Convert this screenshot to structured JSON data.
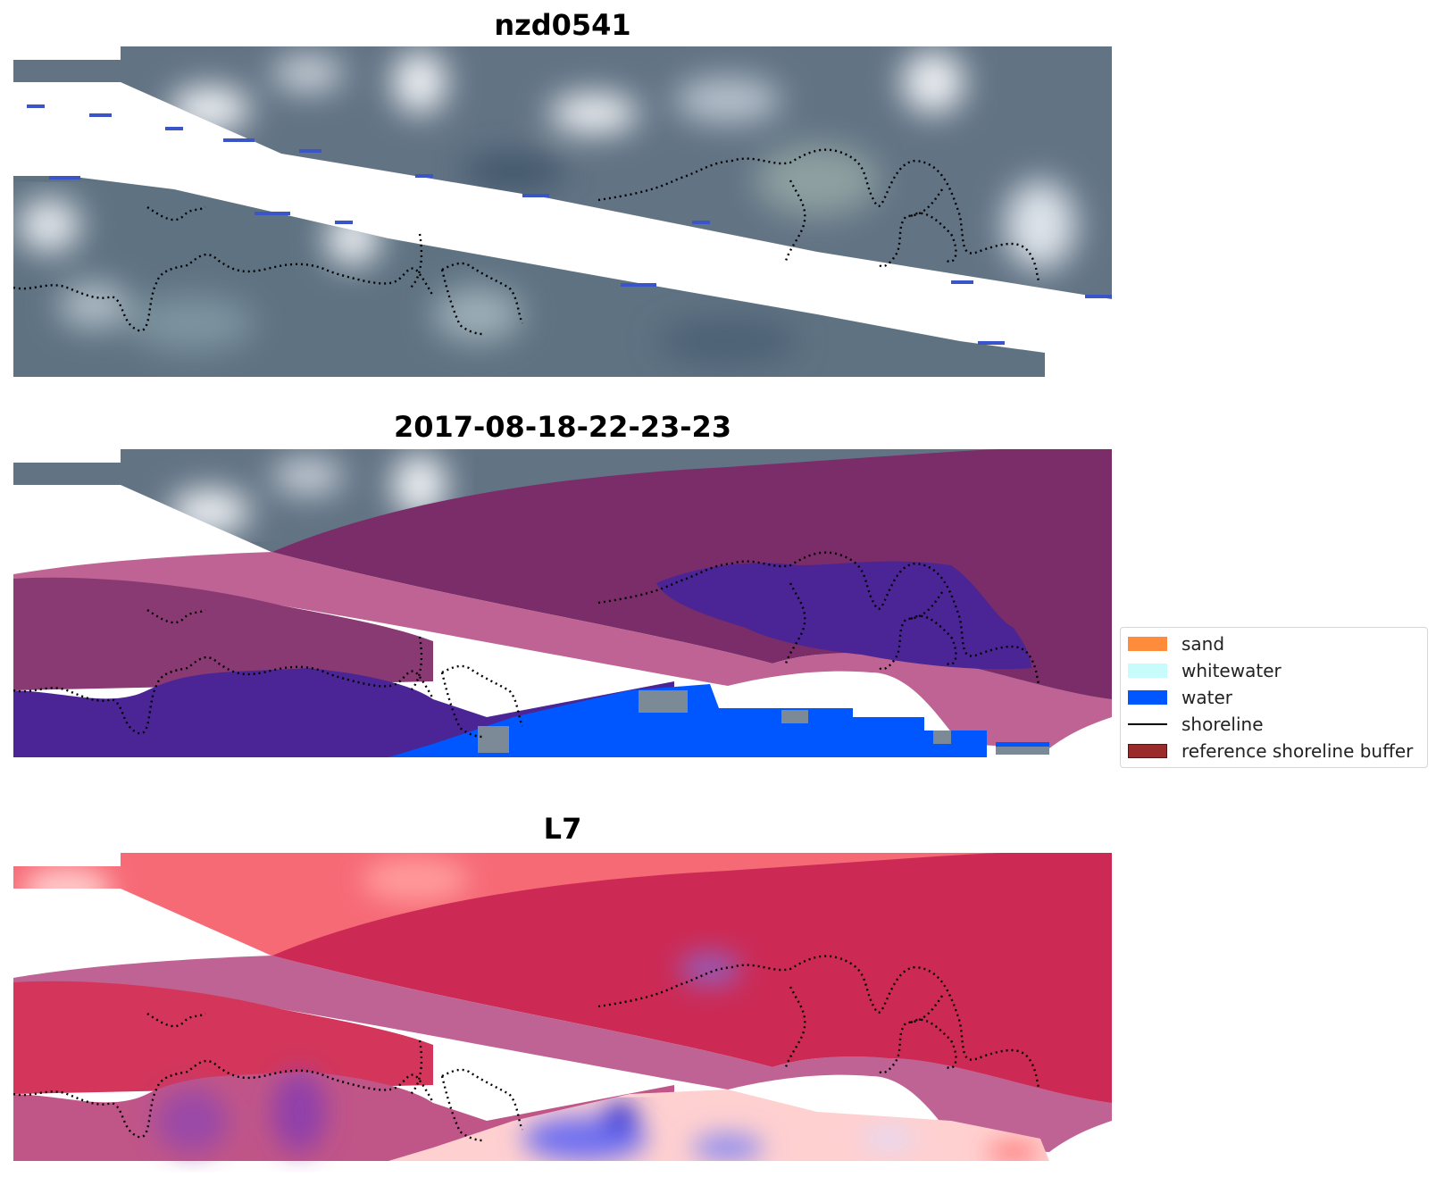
{
  "panels": [
    {
      "title": "nzd0541",
      "kind": "rgb"
    },
    {
      "title": "2017-08-18-22-23-23",
      "kind": "classified"
    },
    {
      "title": "L7",
      "kind": "index"
    }
  ],
  "legend": {
    "items": [
      {
        "label": "sand",
        "type": "patch",
        "color": "#ff8c3a"
      },
      {
        "label": "whitewater",
        "type": "patch",
        "color": "#c8fbfb"
      },
      {
        "label": "water",
        "type": "patch",
        "color": "#0057ff"
      },
      {
        "label": "shoreline",
        "type": "line",
        "color": "#000000"
      },
      {
        "label": "reference shoreline buffer",
        "type": "patch",
        "color": "#9b2a2a"
      }
    ]
  },
  "colors": {
    "imagery_base": "#5e7080",
    "imagery_cloud": "#dde3ea",
    "buffer_overlay": "#c06090",
    "buffer_dark": "#7a2a66",
    "class_water": "#0057ff",
    "class_purple": "#4b2596",
    "index_red": "#d12a52",
    "index_pink": "#ff9a9a",
    "index_blue": "#3030d0"
  }
}
